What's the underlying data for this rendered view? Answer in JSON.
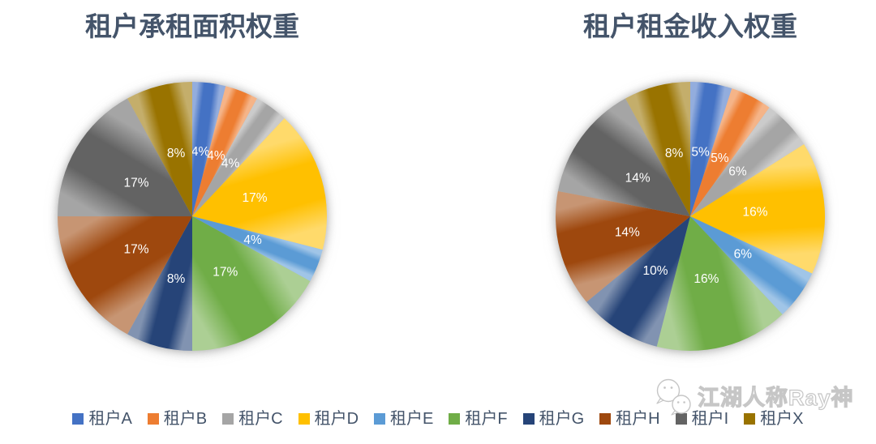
{
  "page": {
    "background": "#FFFFFF",
    "title_color": "#44546A",
    "label_color": "#FFFFFF"
  },
  "chart_data": [
    {
      "type": "pie",
      "title": "租户承租面积权重",
      "categories": [
        "租户A",
        "租户B",
        "租户C",
        "租户D",
        "租户E",
        "租户F",
        "租户G",
        "租户H",
        "租户I",
        "租户X"
      ],
      "values": [
        4,
        4,
        4,
        17,
        4,
        17,
        8,
        17,
        17,
        8
      ],
      "data_labels": [
        "4%",
        "4%",
        "4%",
        "17%",
        "4%",
        "17%",
        "8%",
        "17%",
        "17%",
        "8%"
      ],
      "unit": "%",
      "start_angle_deg": 0,
      "direction": "clockwise",
      "legend_position": "bottom"
    },
    {
      "type": "pie",
      "title": "租户租金收入权重",
      "categories": [
        "租户A",
        "租户B",
        "租户C",
        "租户D",
        "租户E",
        "租户F",
        "租户G",
        "租户H",
        "租户I",
        "租户X"
      ],
      "values": [
        5,
        5,
        6,
        16,
        6,
        16,
        10,
        14,
        14,
        8
      ],
      "data_labels": [
        "5%",
        "5%",
        "6%",
        "16%",
        "6%",
        "16%",
        "10%",
        "14%",
        "14%",
        "8%"
      ],
      "unit": "%",
      "start_angle_deg": 0,
      "direction": "clockwise",
      "legend_position": "bottom"
    }
  ],
  "series_colors": [
    "#4472C4",
    "#ED7D31",
    "#A5A5A5",
    "#FFC000",
    "#5B9BD5",
    "#70AD47",
    "#264478",
    "#9E480E",
    "#636363",
    "#997300"
  ],
  "legend": {
    "items": [
      "租户A",
      "租户B",
      "租户C",
      "租户D",
      "租户E",
      "租户F",
      "租户G",
      "租户H",
      "租户I",
      "租户X"
    ]
  },
  "watermark": {
    "text": "江湖人称Ray神",
    "icon": "wechat-faces-logo",
    "outline_color": "#C6C6C6"
  }
}
